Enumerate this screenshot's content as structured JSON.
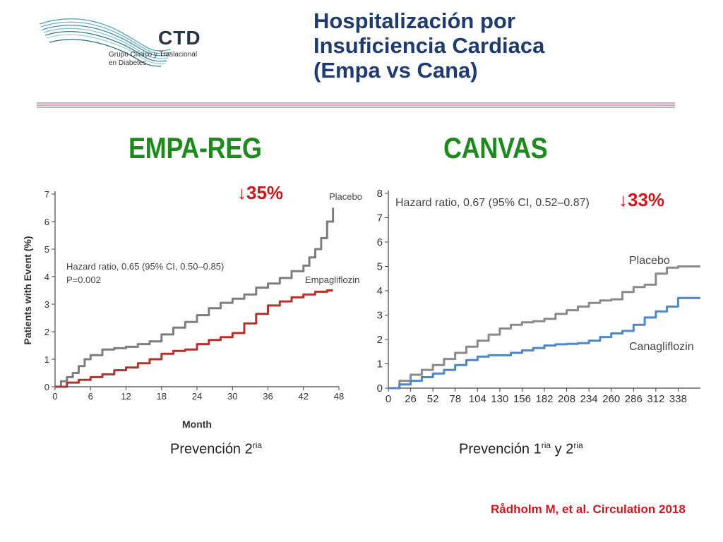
{
  "logo": {
    "name": "CTD",
    "line1": "Grupo Clínico y Traslacional",
    "line2": "en Diabetes"
  },
  "title_lines": [
    "Hospitalización por",
    "Insuficiencia Cardiaca",
    "(Empa vs Cana)"
  ],
  "headings": {
    "empa": "EMPA-REG",
    "canvas": "CANVAS"
  },
  "reductions": {
    "empa": "↓35%",
    "canvas": "↓33%"
  },
  "captions": {
    "empa": {
      "text": "Prevención 2",
      "sup": "ria"
    },
    "canvas": {
      "text1": "Prevención 1",
      "sup1": "ria",
      "mid": " y 2",
      "sup2": "ria"
    }
  },
  "citation": "Rådholm  M, et al. Circulation 2018",
  "chart_data": [
    {
      "type": "line",
      "id": "empa-reg",
      "xlabel": "Month",
      "ylabel": "Patients with Event (%)",
      "xlim": [
        0,
        48
      ],
      "ylim": [
        0,
        7
      ],
      "xticks": [
        0,
        6,
        12,
        18,
        24,
        30,
        36,
        42,
        48
      ],
      "yticks": [
        0,
        1,
        2,
        3,
        4,
        5,
        6,
        7
      ],
      "annotations": [
        "Hazard ratio, 0.65 (95% CI, 0.50–0.85)",
        "P=0.002"
      ],
      "series": [
        {
          "name": "Placebo",
          "color": "#7d7d7d",
          "x": [
            0,
            1,
            2,
            3,
            4,
            5,
            6,
            8,
            10,
            12,
            14,
            16,
            18,
            20,
            22,
            24,
            26,
            28,
            30,
            32,
            34,
            36,
            38,
            40,
            42,
            43,
            44,
            45,
            46,
            47
          ],
          "y": [
            0,
            0.2,
            0.35,
            0.5,
            0.75,
            1.0,
            1.15,
            1.35,
            1.4,
            1.45,
            1.55,
            1.65,
            1.9,
            2.15,
            2.35,
            2.6,
            2.85,
            3.05,
            3.2,
            3.35,
            3.6,
            3.75,
            3.95,
            4.2,
            4.4,
            4.7,
            5.0,
            5.4,
            6.0,
            6.5
          ]
        },
        {
          "name": "Empagliflozin",
          "color": "#b5312a",
          "x": [
            0,
            2,
            4,
            6,
            8,
            10,
            12,
            14,
            16,
            18,
            20,
            22,
            24,
            26,
            28,
            30,
            32,
            34,
            36,
            38,
            40,
            42,
            44,
            46,
            47
          ],
          "y": [
            0,
            0.15,
            0.25,
            0.35,
            0.45,
            0.6,
            0.7,
            0.85,
            1.0,
            1.2,
            1.3,
            1.35,
            1.55,
            1.7,
            1.8,
            1.95,
            2.3,
            2.65,
            2.95,
            3.1,
            3.25,
            3.35,
            3.45,
            3.5,
            3.5
          ]
        }
      ]
    },
    {
      "type": "line",
      "id": "canvas",
      "xlabel": "",
      "ylabel": "",
      "xlim": [
        0,
        364
      ],
      "ylim": [
        0,
        8
      ],
      "xticks": [
        0,
        26,
        52,
        78,
        104,
        130,
        156,
        182,
        208,
        234,
        260,
        286,
        312,
        338
      ],
      "yticks": [
        0,
        1,
        2,
        3,
        4,
        5,
        6,
        7,
        8
      ],
      "annotations": [
        "Hazard ratio, 0.67 (95% CI, 0.52–0.87)"
      ],
      "series": [
        {
          "name": "Placebo",
          "color": "#8a8a8a",
          "x": [
            0,
            13,
            26,
            39,
            52,
            65,
            78,
            91,
            104,
            117,
            130,
            143,
            156,
            169,
            182,
            195,
            208,
            221,
            234,
            247,
            260,
            273,
            286,
            299,
            312,
            325,
            338,
            351,
            364
          ],
          "y": [
            0,
            0.3,
            0.55,
            0.75,
            0.95,
            1.2,
            1.45,
            1.7,
            1.95,
            2.2,
            2.45,
            2.6,
            2.7,
            2.75,
            2.85,
            3.05,
            3.2,
            3.35,
            3.5,
            3.6,
            3.65,
            3.95,
            4.15,
            4.25,
            4.7,
            4.95,
            5.0,
            5.0,
            5.0
          ]
        },
        {
          "name": "Canagliflozin",
          "color": "#4f86c6",
          "x": [
            0,
            13,
            26,
            39,
            52,
            65,
            78,
            91,
            104,
            117,
            130,
            143,
            156,
            169,
            182,
            195,
            208,
            221,
            234,
            247,
            260,
            273,
            286,
            299,
            312,
            325,
            338,
            351,
            364
          ],
          "y": [
            0,
            0.15,
            0.3,
            0.45,
            0.6,
            0.75,
            0.95,
            1.15,
            1.3,
            1.35,
            1.35,
            1.45,
            1.55,
            1.65,
            1.75,
            1.8,
            1.82,
            1.85,
            1.95,
            2.1,
            2.25,
            2.35,
            2.6,
            2.9,
            3.15,
            3.35,
            3.7,
            3.7,
            3.7
          ]
        }
      ]
    }
  ]
}
